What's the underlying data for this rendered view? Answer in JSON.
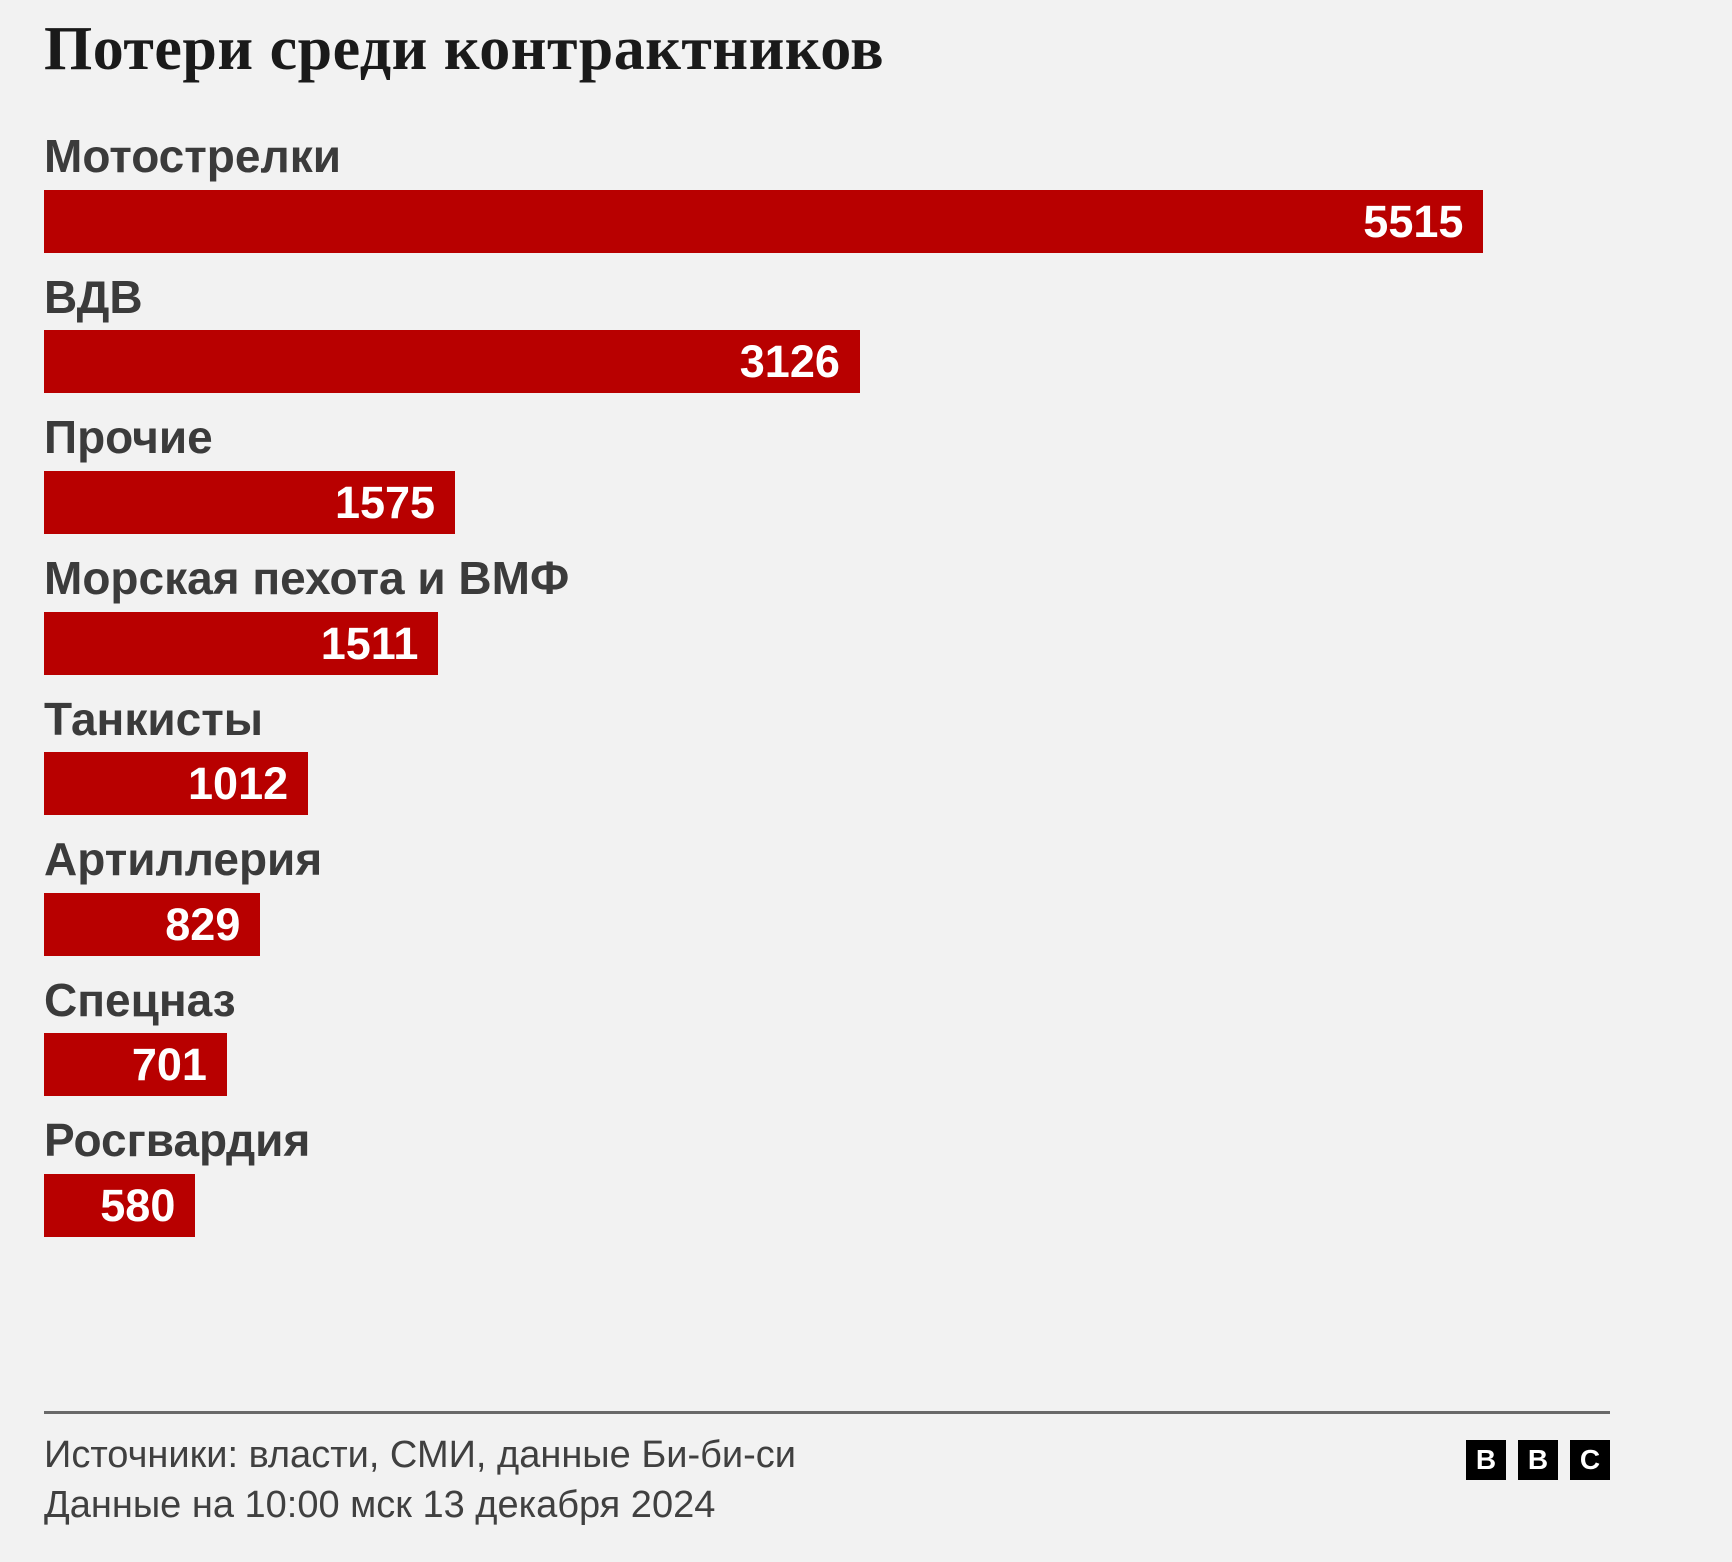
{
  "title": "Потери среди контрактников",
  "chart_data": {
    "type": "bar",
    "orientation": "horizontal",
    "title": "Потери среди контрактников",
    "categories": [
      "Мотострелки",
      "ВДВ",
      "Прочие",
      "Морская пехота и ВМФ",
      "Танкисты",
      "Артиллерия",
      "Спецназ",
      "Росгвардия"
    ],
    "values": [
      5515,
      3126,
      1575,
      1511,
      1012,
      829,
      701,
      580
    ],
    "xlabel": "",
    "ylabel": "",
    "xlim": [
      0,
      6000
    ],
    "grid": false,
    "legend": "none",
    "value_labels": "inside-bar-right",
    "bar_color": "#b80000"
  },
  "footer": {
    "sources": "Источники: власти, СМИ, данные Би-би-си",
    "note": "Данные на 10:00 мск 13 декабря 2024",
    "logo_letters": [
      "B",
      "B",
      "C"
    ]
  },
  "colors": {
    "background": "#f2f2f2",
    "bar": "#b80000",
    "title_text": "#1a1a1a",
    "label_text": "#3b3b3b",
    "value_text": "#ffffff",
    "rule": "#696969",
    "footer_text": "#404040",
    "logo_background": "#000000",
    "logo_letter": "#ffffff"
  }
}
